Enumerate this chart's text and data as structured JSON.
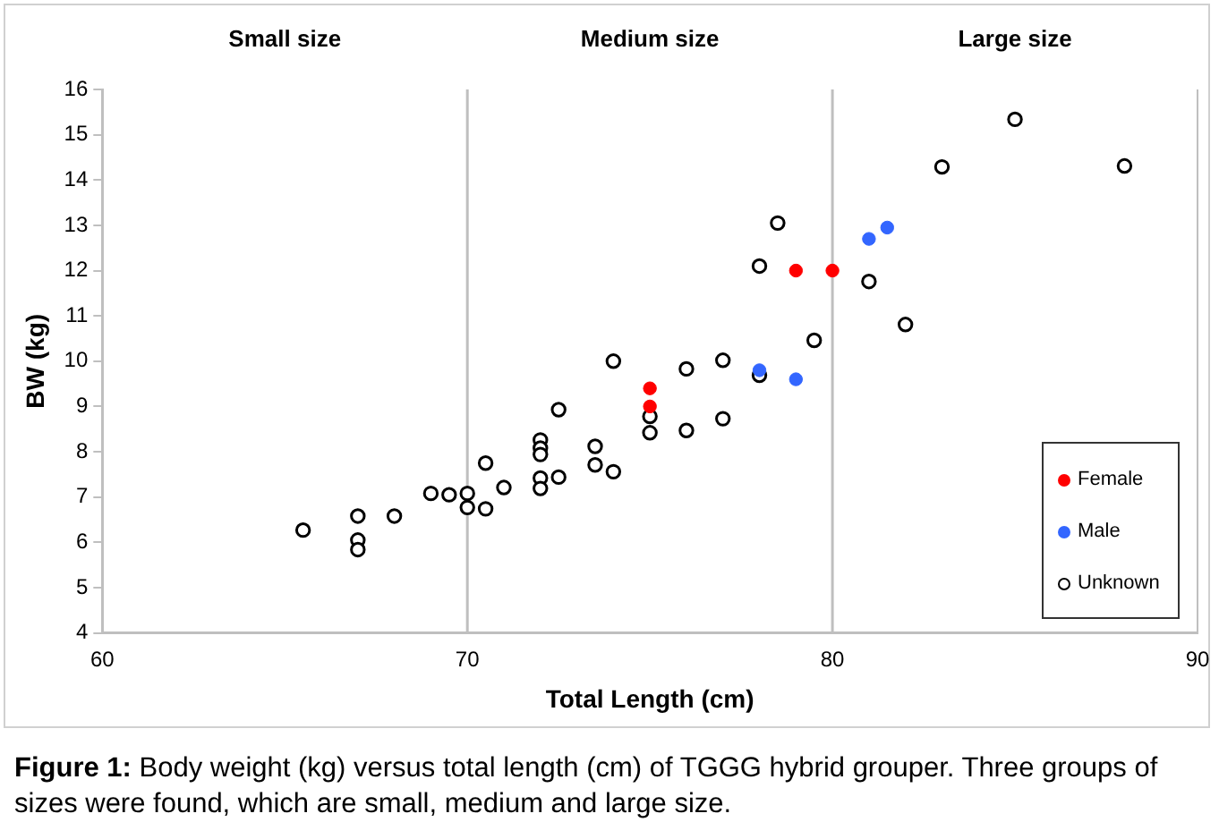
{
  "chart_data": {
    "type": "scatter",
    "xlabel": "Total Length (cm)",
    "ylabel": "BW (kg)",
    "xlim": [
      60,
      90
    ],
    "xticks": [
      60,
      70,
      80,
      90
    ],
    "ylim": [
      4,
      16
    ],
    "yticks": [
      4,
      5,
      6,
      7,
      8,
      9,
      10,
      11,
      12,
      13,
      14,
      15,
      16
    ],
    "grid": false,
    "legend": "bottom right",
    "marker": "circle",
    "ref_lines": [
      {
        "axis": "x",
        "value": 70,
        "color": "#bfbfbf"
      },
      {
        "axis": "x",
        "value": 80,
        "color": "#bfbfbf"
      }
    ],
    "annotations": [
      "Small size",
      "Medium size",
      "Large size",
      "Figure 1: Body weight (kg) versus total length (cm) of TGGG hybrid grouper. Three groups of sizes were found, which are small, medium and large size."
    ],
    "series": [
      {
        "name": "Female",
        "color": "#ff0000",
        "x": [
          75,
          75,
          79,
          80
        ],
        "values": [
          9.4,
          9.0,
          12.0,
          12.0
        ]
      },
      {
        "name": "Male",
        "color": "#3366ff",
        "x": [
          78,
          79,
          81,
          81.5
        ],
        "values": [
          9.8,
          9.6,
          12.7,
          12.95
        ]
      },
      {
        "name": "Unknown",
        "color": "#000000",
        "x": [
          65.5,
          67,
          67,
          67,
          68,
          69,
          69.5,
          70,
          70,
          70.5,
          70.5,
          71,
          72,
          72,
          72,
          72,
          72,
          72.5,
          72.5,
          73.5,
          73.5,
          74,
          74,
          75,
          75,
          76,
          76,
          77,
          77,
          78,
          78,
          78.5,
          79.5,
          81,
          82,
          83,
          85,
          88
        ],
        "values": [
          6.27,
          6.58,
          6.05,
          5.84,
          6.58,
          7.08,
          7.05,
          7.08,
          6.77,
          7.75,
          6.74,
          7.21,
          8.26,
          8.08,
          7.94,
          7.42,
          7.19,
          8.93,
          7.44,
          8.12,
          7.71,
          10.0,
          7.56,
          8.78,
          8.42,
          9.83,
          8.47,
          10.02,
          8.73,
          9.69,
          12.1,
          13.05,
          10.46,
          11.76,
          10.81,
          14.29,
          15.34,
          14.31
        ]
      }
    ]
  }
}
